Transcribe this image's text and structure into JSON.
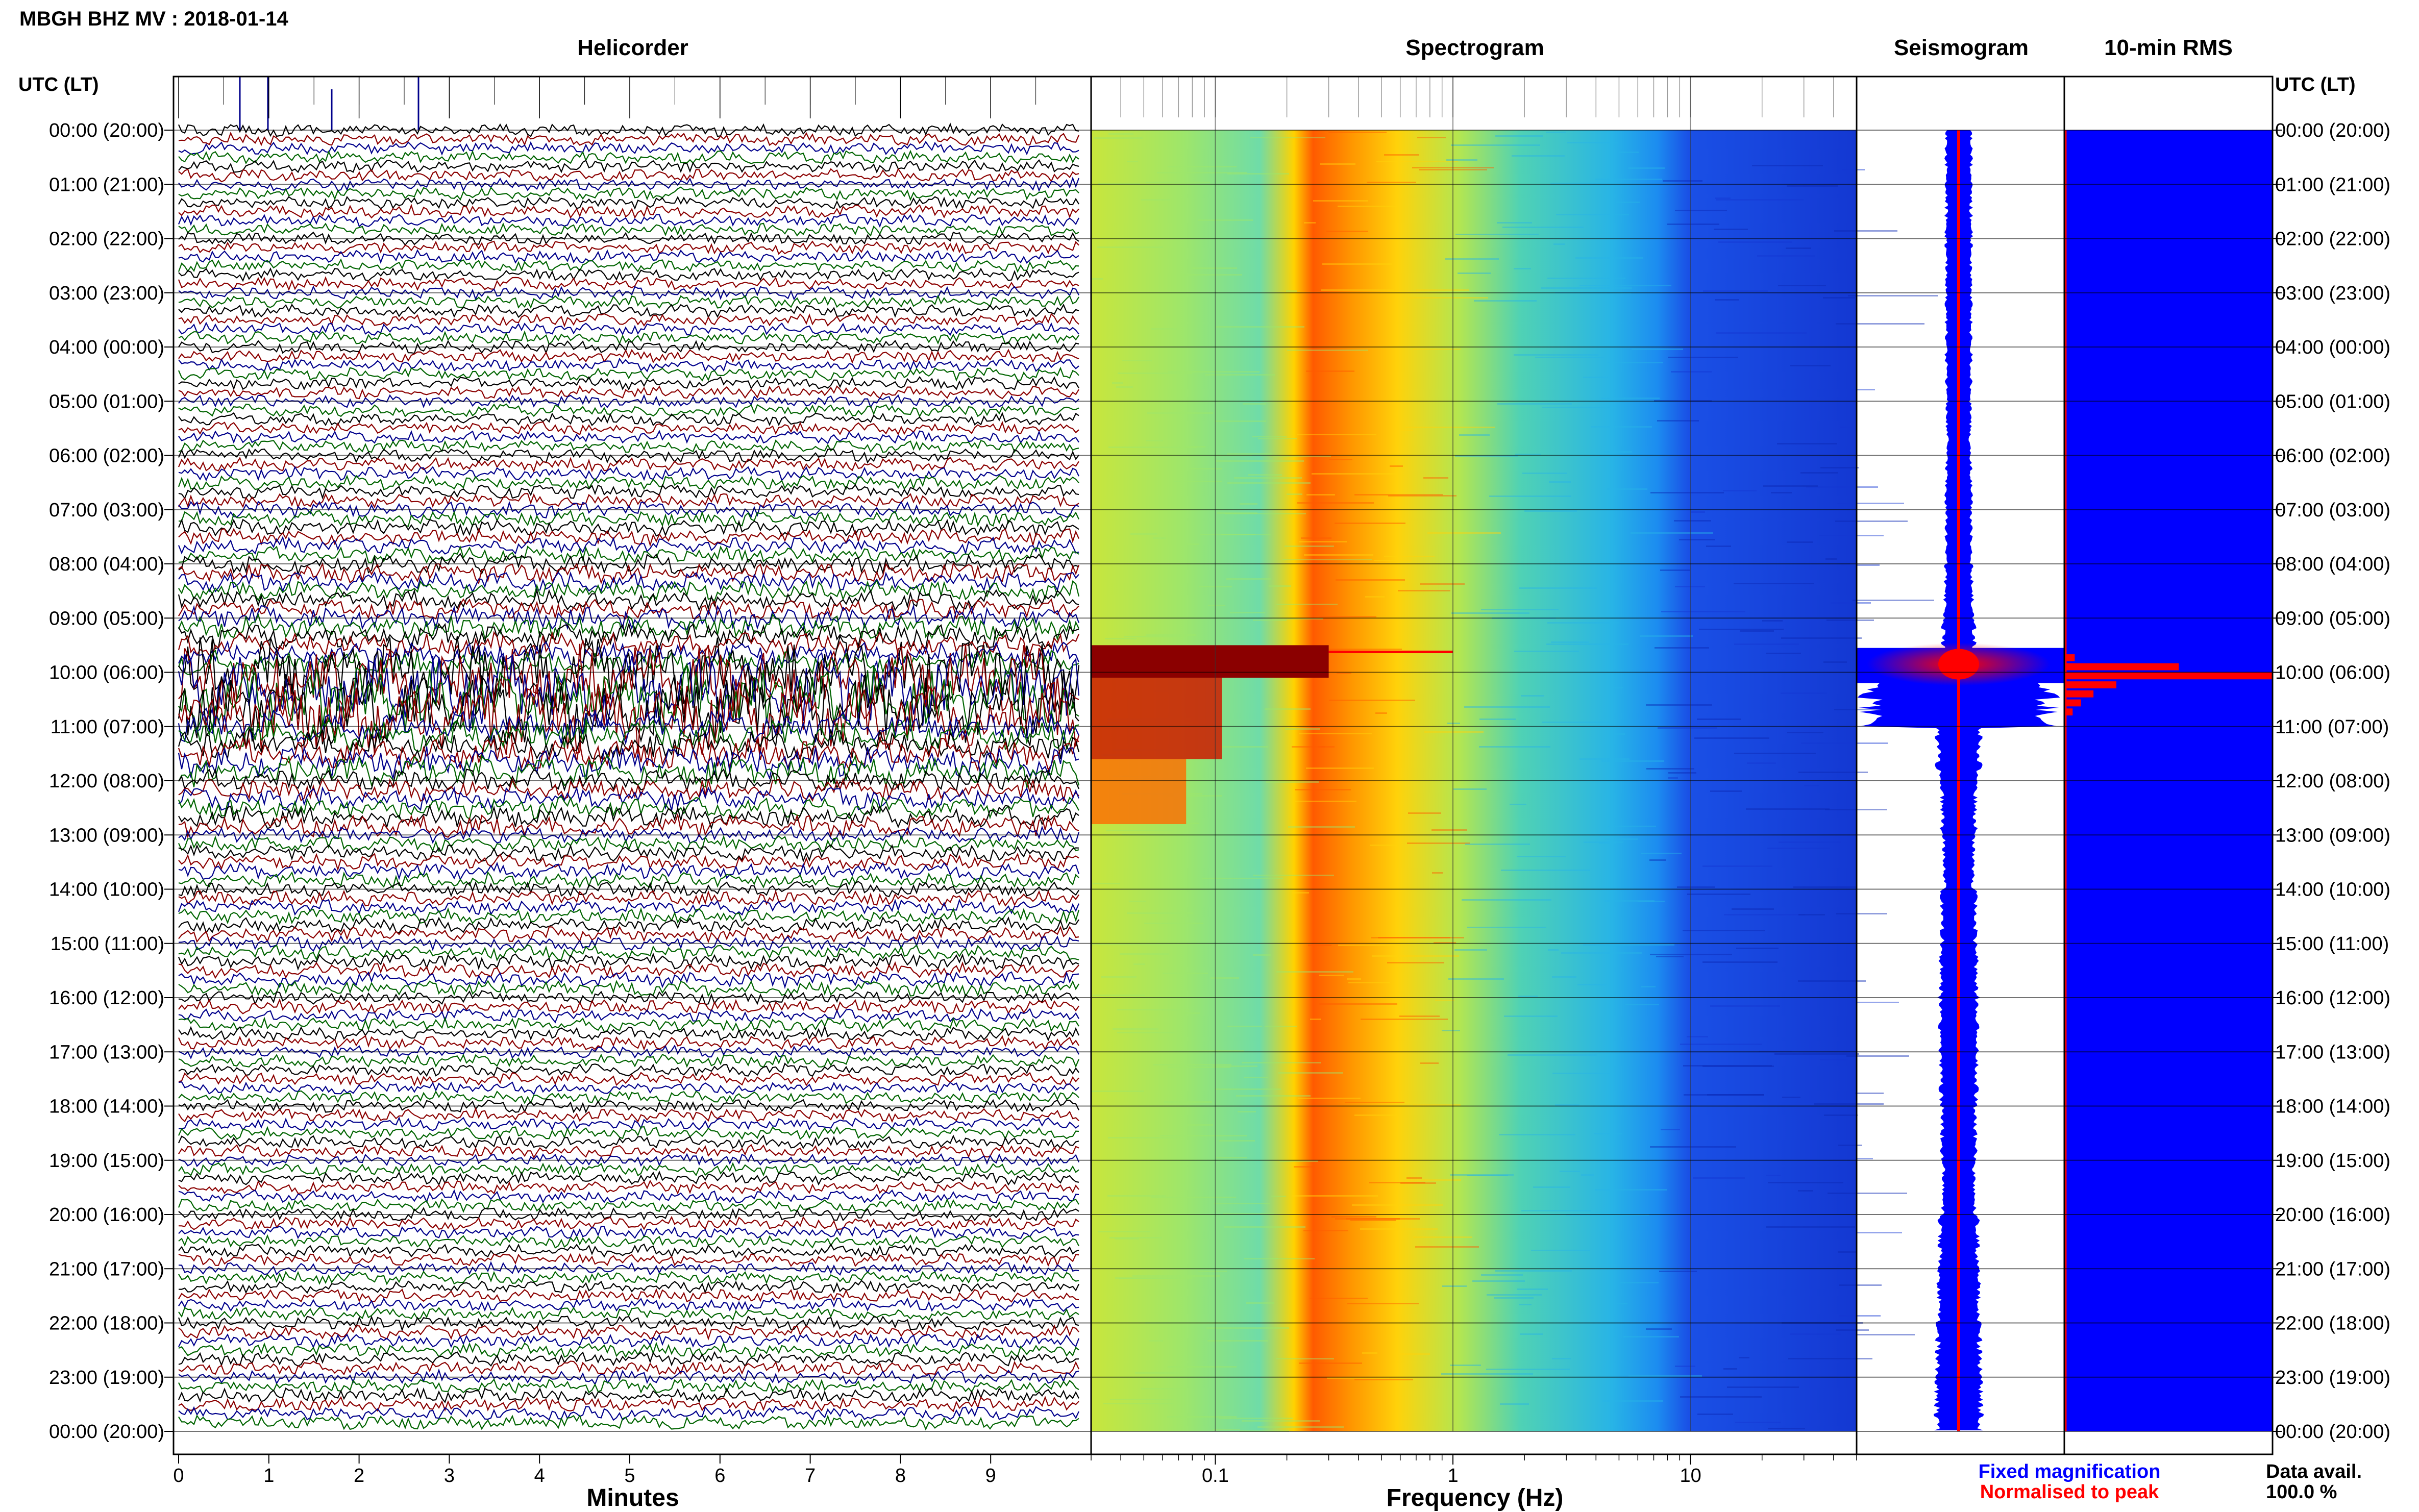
{
  "header": {
    "station_title": "MBGH BHZ MV : 2018-01-14"
  },
  "panels": {
    "helicorder_title": "Helicorder",
    "spectrogram_title": "Spectrogram",
    "seismogram_title": "Seismogram",
    "rms_title": "10-min RMS"
  },
  "axes": {
    "left_header": "UTC (LT)",
    "right_header": "UTC (LT)",
    "helicorder_xlabel": "Minutes",
    "spectrogram_xlabel": "Frequency (Hz)"
  },
  "legend": {
    "fixed_label": "Fixed magnification",
    "fixed_color": "#0000ff",
    "normalised_label": "Normalised to peak",
    "normalised_color": "#ff0000"
  },
  "data_avail": {
    "label": "Data avail.",
    "value": "100.0 %"
  },
  "colors": {
    "trace_cycle": [
      "#000000",
      "#8b0000",
      "#00008b",
      "#006400"
    ],
    "seismogram_fixed": "#0000ff",
    "seismogram_normalised": "#ff0000",
    "rms_fill": "#0000ff",
    "rms_peak": "#ff0000"
  },
  "chart_data": [
    {
      "type": "line",
      "name": "helicorder",
      "title": "Helicorder",
      "xlabel": "Minutes",
      "xlim": [
        0,
        10
      ],
      "x_ticks": [
        "0",
        "1",
        "2",
        "3",
        "4",
        "5",
        "6",
        "7",
        "8",
        "9"
      ],
      "y_tick_labels": [
        "00:00 (20:00)",
        "01:00 (21:00)",
        "02:00 (22:00)",
        "03:00 (23:00)",
        "04:00 (00:00)",
        "05:00 (01:00)",
        "06:00 (02:00)",
        "07:00 (03:00)",
        "08:00 (04:00)",
        "09:00 (05:00)",
        "10:00 (06:00)",
        "11:00 (07:00)",
        "12:00 (08:00)",
        "13:00 (09:00)",
        "14:00 (10:00)",
        "15:00 (11:00)",
        "16:00 (12:00)",
        "17:00 (13:00)",
        "18:00 (14:00)",
        "19:00 (15:00)",
        "20:00 (16:00)",
        "21:00 (17:00)",
        "22:00 (18:00)",
        "23:00 (19:00)",
        "00:00 (20:00)"
      ],
      "traces_per_hour": 6,
      "event_window_utc": [
        "09:30",
        "10:30"
      ],
      "relative_amplitude_by_hour": [
        1.0,
        1.0,
        1.0,
        1.0,
        1.0,
        1.0,
        1.1,
        1.3,
        1.6,
        2.0,
        6.0,
        2.6,
        1.8,
        1.3,
        1.2,
        1.2,
        1.1,
        1.0,
        1.0,
        1.0,
        1.0,
        1.0,
        1.1,
        1.1
      ]
    },
    {
      "type": "heatmap",
      "name": "spectrogram",
      "title": "Spectrogram",
      "xlabel": "Frequency (Hz)",
      "x_scale": "log",
      "xlim": [
        0.03,
        50
      ],
      "x_tick_labels": [
        "0.1",
        "1",
        "10"
      ],
      "peak_band_hz": [
        0.18,
        0.5
      ],
      "event_band_hz": [
        0.03,
        0.3
      ],
      "colormap": "jet"
    },
    {
      "type": "area",
      "name": "seismogram",
      "title": "Seismogram",
      "series": [
        {
          "name": "Fixed magnification",
          "color": "#0000ff"
        },
        {
          "name": "Normalised to peak",
          "color": "#ff0000"
        }
      ],
      "relative_envelope_by_hour": [
        0.12,
        0.12,
        0.12,
        0.12,
        0.12,
        0.11,
        0.12,
        0.12,
        0.13,
        0.15,
        0.85,
        0.2,
        0.16,
        0.14,
        0.16,
        0.17,
        0.18,
        0.17,
        0.16,
        0.15,
        0.18,
        0.19,
        0.2,
        0.21
      ]
    },
    {
      "type": "bar",
      "name": "rms",
      "title": "10-min RMS",
      "orientation": "horizontal",
      "relative_rms_10min_around_event": [
        {
          "time_utc": "09:40",
          "value": 0.05
        },
        {
          "time_utc": "09:50",
          "value": 0.55
        },
        {
          "time_utc": "10:00",
          "value": 1.0
        },
        {
          "time_utc": "10:10",
          "value": 0.25
        },
        {
          "time_utc": "10:20",
          "value": 0.14
        },
        {
          "time_utc": "10:30",
          "value": 0.08
        },
        {
          "time_utc": "10:40",
          "value": 0.04
        }
      ]
    }
  ]
}
